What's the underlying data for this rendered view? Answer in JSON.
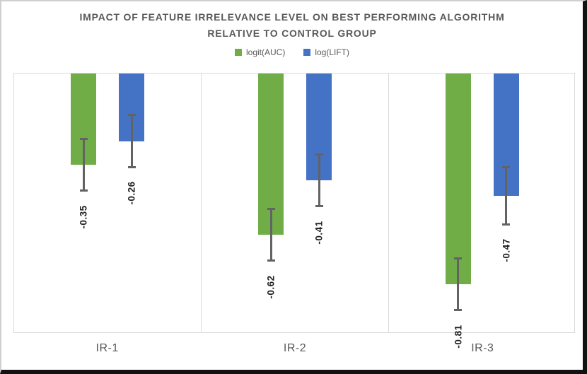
{
  "header": {
    "title_line1": "IMPACT OF FEATURE IRRELEVANCE LEVEL ON BEST PERFORMING ALGORITHM",
    "title_line2": "RELATIVE TO CONTROL GROUP"
  },
  "chart_data": {
    "type": "bar",
    "title": "IMPACT OF FEATURE IRRELEVANCE LEVEL ON BEST PERFORMING ALGORITHM RELATIVE TO CONTROL GROUP",
    "orientation": "vertical-negative",
    "categories": [
      "IR-1",
      "IR-2",
      "IR-3"
    ],
    "series": [
      {
        "name": "logit(AUC)",
        "color": "#70AD47",
        "values": [
          -0.35,
          -0.62,
          -0.81
        ],
        "errors": [
          0.1,
          0.1,
          0.1
        ],
        "data_labels": [
          "-0.35",
          "-0.62",
          "-0.81"
        ]
      },
      {
        "name": "log(LIFT)",
        "color": "#4472C4",
        "values": [
          -0.26,
          -0.41,
          -0.47
        ],
        "errors": [
          0.1,
          0.1,
          0.11
        ],
        "data_labels": [
          "-0.26",
          "-0.41",
          "-0.47"
        ]
      }
    ],
    "ylim": [
      0,
      -1.0
    ],
    "y_axis_visible": false,
    "legend_position": "top",
    "gridlines": "vertical category separators only",
    "error_bars": true,
    "data_label_rotation": -90
  }
}
